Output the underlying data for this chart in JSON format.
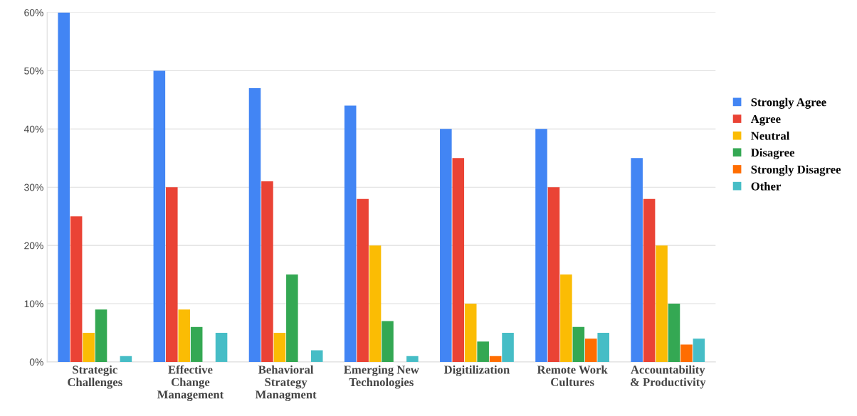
{
  "chart_data": {
    "type": "bar",
    "categories": [
      "Strategic\nChallenges",
      "Effective\nChange\nManagement",
      "Behavioral\nStrategy\nManagment",
      "Emerging New\nTechnologies",
      "Digitilization",
      "Remote Work\nCultures",
      "Accountability\n& Productivity"
    ],
    "series": [
      {
        "name": "Strongly Agree",
        "color": "#4285f4",
        "values": [
          60,
          50,
          47,
          44,
          40,
          40,
          35
        ]
      },
      {
        "name": "Agree",
        "color": "#ea4335",
        "values": [
          25,
          30,
          31,
          28,
          35,
          30,
          28
        ]
      },
      {
        "name": "Neutral",
        "color": "#fbbc04",
        "values": [
          5,
          9,
          5,
          20,
          10,
          15,
          20
        ]
      },
      {
        "name": "Disagree",
        "color": "#34a853",
        "values": [
          9,
          6,
          15,
          7,
          3.5,
          6,
          10
        ]
      },
      {
        "name": "Strongly Disagree",
        "color": "#ff6d01",
        "values": [
          0,
          0,
          0,
          0,
          1,
          4,
          3
        ]
      },
      {
        "name": "Other",
        "color": "#46bdc6",
        "values": [
          1,
          5,
          2,
          1,
          5,
          5,
          4
        ]
      }
    ],
    "ylim": [
      0,
      60
    ],
    "yticks": [
      {
        "value": 0,
        "label": "0%"
      },
      {
        "value": 10,
        "label": "10%"
      },
      {
        "value": 20,
        "label": "20%"
      },
      {
        "value": 30,
        "label": "30%"
      },
      {
        "value": 40,
        "label": "40%"
      },
      {
        "value": 50,
        "label": "50%"
      },
      {
        "value": 60,
        "label": "60%"
      }
    ],
    "grid": "y",
    "legend": "right"
  }
}
